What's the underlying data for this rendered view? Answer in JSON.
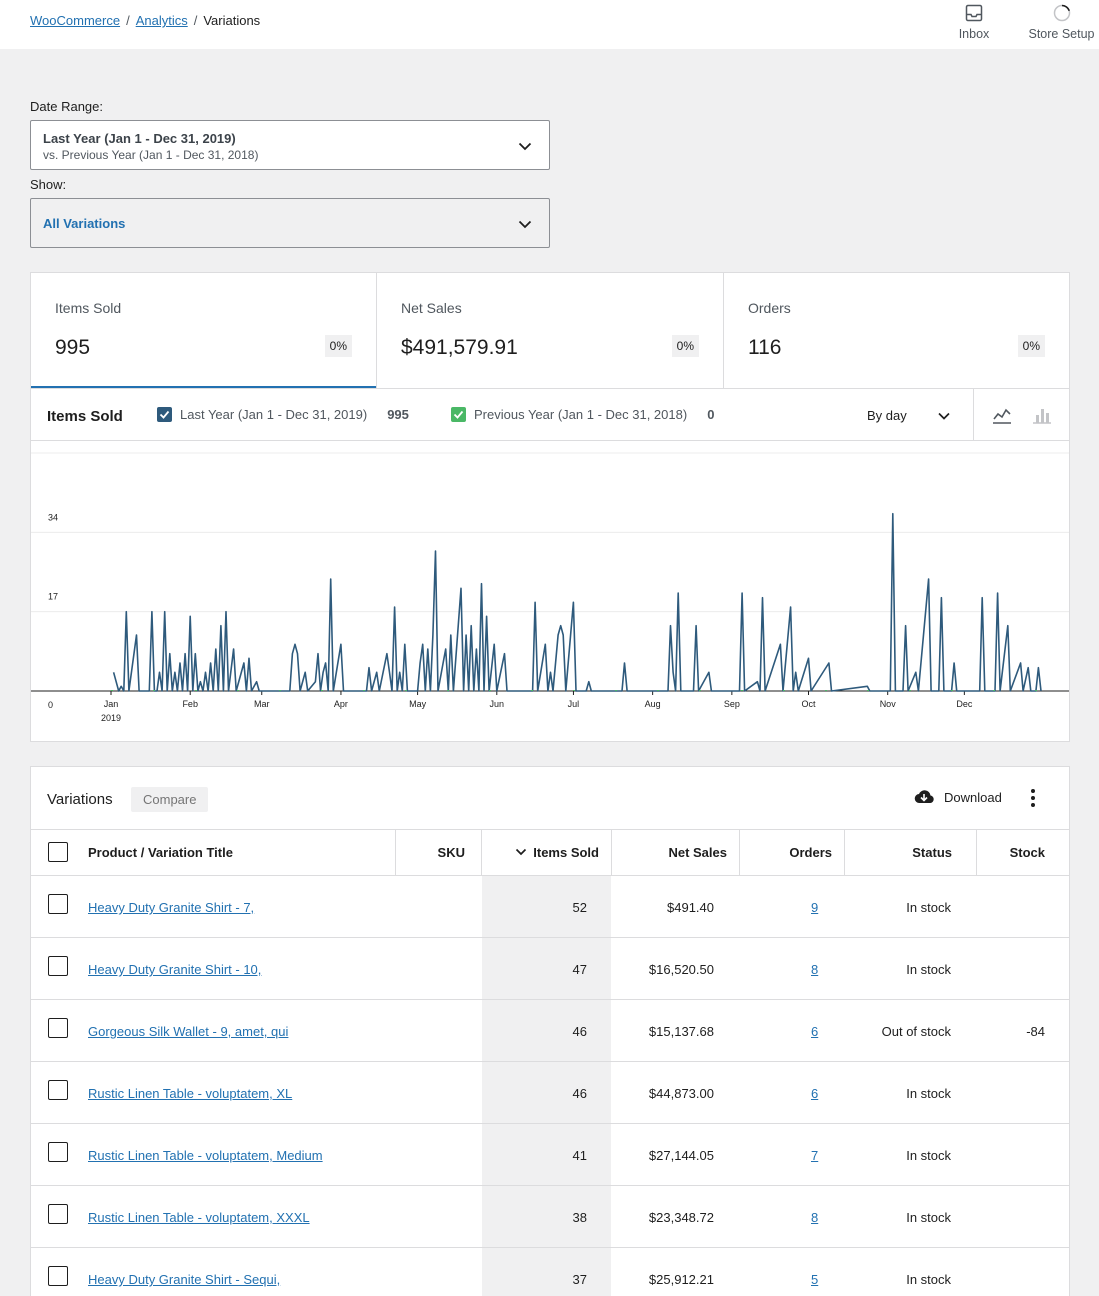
{
  "breadcrumb": {
    "root": "WooCommerce",
    "section": "Analytics",
    "current": "Variations"
  },
  "header_actions": [
    {
      "label": "Inbox",
      "icon": "inbox-icon"
    },
    {
      "label": "Store Setup",
      "icon": "progress-ring-icon"
    }
  ],
  "filters": {
    "date_range_label": "Date Range:",
    "date_range_primary": "Last Year (Jan 1 - Dec 31, 2019)",
    "date_range_compare": "vs. Previous Year (Jan 1 - Dec 31, 2018)",
    "show_label": "Show:",
    "show_value": "All Variations"
  },
  "summary": [
    {
      "title": "Items Sold",
      "value": "995",
      "delta": "0%"
    },
    {
      "title": "Net Sales",
      "value": "$491,579.91",
      "delta": "0%"
    },
    {
      "title": "Orders",
      "value": "116",
      "delta": "0%"
    }
  ],
  "chart_panel": {
    "title": "Items Sold",
    "legend": [
      {
        "label": "Last Year (Jan 1 - Dec 31, 2019)",
        "total": "995",
        "color": "#2e5a7c"
      },
      {
        "label": "Previous Year (Jan 1 - Dec 31, 2018)",
        "total": "0",
        "color": "#4ab866"
      }
    ],
    "interval": "By day",
    "icons": [
      "line-chart-icon",
      "bar-chart-icon"
    ]
  },
  "chart_data": {
    "type": "line",
    "title": "Items Sold",
    "ylim": [
      0,
      51
    ],
    "yticks": [
      "0",
      "17",
      "34",
      "51"
    ],
    "xticks": [
      "Jan",
      "Feb",
      "Mar",
      "Apr",
      "May",
      "Jun",
      "Jul",
      "Aug",
      "Sep",
      "Oct",
      "Nov",
      "Dec"
    ],
    "xtick_sub": "2019",
    "grid": true,
    "series": [
      {
        "name": "Last Year (Jan 1 - Dec 31, 2019)",
        "color": "#2e5a7c",
        "points": [
          [
            1,
            4
          ],
          [
            3,
            0
          ],
          [
            4,
            1
          ],
          [
            5,
            0
          ],
          [
            6,
            17
          ],
          [
            7,
            0
          ],
          [
            10,
            12
          ],
          [
            11,
            0
          ],
          [
            15,
            0
          ],
          [
            16,
            17
          ],
          [
            17,
            0
          ],
          [
            18,
            0
          ],
          [
            19,
            4
          ],
          [
            20,
            0
          ],
          [
            21,
            17
          ],
          [
            22,
            0
          ],
          [
            23,
            8
          ],
          [
            24,
            0
          ],
          [
            25,
            4
          ],
          [
            26,
            0
          ],
          [
            27,
            6
          ],
          [
            28,
            0
          ],
          [
            29,
            8
          ],
          [
            30,
            0
          ],
          [
            31,
            16
          ],
          [
            32,
            0
          ],
          [
            33,
            8
          ],
          [
            34,
            0
          ],
          [
            35,
            2
          ],
          [
            36,
            0
          ],
          [
            37,
            4
          ],
          [
            38,
            0
          ],
          [
            39,
            6
          ],
          [
            40,
            0
          ],
          [
            41,
            9
          ],
          [
            42,
            0
          ],
          [
            43,
            14
          ],
          [
            44,
            0
          ],
          [
            45,
            17
          ],
          [
            46,
            0
          ],
          [
            48,
            9
          ],
          [
            49,
            0
          ],
          [
            52,
            6
          ],
          [
            53,
            0
          ],
          [
            54,
            7
          ],
          [
            55,
            0
          ],
          [
            57,
            2
          ],
          [
            58,
            0
          ],
          [
            70,
            0
          ],
          [
            71,
            8
          ],
          [
            72,
            10
          ],
          [
            73,
            8
          ],
          [
            74,
            0
          ],
          [
            76,
            4
          ],
          [
            77,
            0
          ],
          [
            80,
            2
          ],
          [
            81,
            8
          ],
          [
            82,
            0
          ],
          [
            83,
            4
          ],
          [
            84,
            6
          ],
          [
            85,
            0
          ],
          [
            86,
            24
          ],
          [
            87,
            0
          ],
          [
            90,
            10
          ],
          [
            91,
            0
          ],
          [
            100,
            0
          ],
          [
            101,
            5
          ],
          [
            102,
            0
          ],
          [
            104,
            4
          ],
          [
            105,
            0
          ],
          [
            108,
            8
          ],
          [
            109,
            4
          ],
          [
            110,
            0
          ],
          [
            111,
            18
          ],
          [
            112,
            0
          ],
          [
            113,
            4
          ],
          [
            114,
            0
          ],
          [
            115,
            10
          ],
          [
            116,
            0
          ],
          [
            120,
            0
          ],
          [
            121,
            6
          ],
          [
            122,
            10
          ],
          [
            123,
            0
          ],
          [
            124,
            9
          ],
          [
            125,
            0
          ],
          [
            126,
            12
          ],
          [
            127,
            30
          ],
          [
            128,
            0
          ],
          [
            130,
            6
          ],
          [
            131,
            9
          ],
          [
            132,
            0
          ],
          [
            133,
            12
          ],
          [
            134,
            0
          ],
          [
            137,
            22
          ],
          [
            138,
            0
          ],
          [
            139,
            12
          ],
          [
            140,
            0
          ],
          [
            141,
            14
          ],
          [
            142,
            0
          ],
          [
            143,
            9
          ],
          [
            144,
            0
          ],
          [
            145,
            23
          ],
          [
            146,
            0
          ],
          [
            147,
            16
          ],
          [
            148,
            0
          ],
          [
            150,
            10
          ],
          [
            151,
            0
          ],
          [
            154,
            8
          ],
          [
            155,
            0
          ],
          [
            165,
            0
          ],
          [
            166,
            19
          ],
          [
            167,
            0
          ],
          [
            170,
            10
          ],
          [
            171,
            0
          ],
          [
            172,
            4
          ],
          [
            173,
            0
          ],
          [
            175,
            12
          ],
          [
            176,
            14
          ],
          [
            177,
            12
          ],
          [
            178,
            0
          ],
          [
            181,
            19
          ],
          [
            182,
            0
          ],
          [
            186,
            0
          ],
          [
            187,
            2
          ],
          [
            188,
            0
          ],
          [
            200,
            0
          ],
          [
            201,
            6
          ],
          [
            202,
            0
          ],
          [
            218,
            0
          ],
          [
            219,
            14
          ],
          [
            220,
            4
          ],
          [
            221,
            0
          ],
          [
            222,
            21
          ],
          [
            223,
            0
          ],
          [
            228,
            0
          ],
          [
            229,
            14
          ],
          [
            230,
            0
          ],
          [
            234,
            4
          ],
          [
            235,
            0
          ],
          [
            246,
            0
          ],
          [
            247,
            21
          ],
          [
            248,
            0
          ],
          [
            253,
            2
          ],
          [
            254,
            0
          ],
          [
            255,
            20
          ],
          [
            256,
            0
          ],
          [
            262,
            10
          ],
          [
            263,
            0
          ],
          [
            266,
            18
          ],
          [
            267,
            0
          ],
          [
            268,
            4
          ],
          [
            269,
            0
          ],
          [
            273,
            7
          ],
          [
            274,
            0
          ],
          [
            281,
            6
          ],
          [
            282,
            0
          ],
          [
            296,
            1
          ],
          [
            297,
            0
          ],
          [
            305,
            0
          ],
          [
            306,
            38
          ],
          [
            307,
            0
          ],
          [
            310,
            0
          ],
          [
            311,
            14
          ],
          [
            312,
            0
          ],
          [
            315,
            4
          ],
          [
            316,
            0
          ],
          [
            320,
            24
          ],
          [
            321,
            0
          ],
          [
            324,
            0
          ],
          [
            325,
            20
          ],
          [
            326,
            0
          ],
          [
            329,
            0
          ],
          [
            330,
            6
          ],
          [
            331,
            0
          ],
          [
            340,
            0
          ],
          [
            341,
            20
          ],
          [
            342,
            0
          ],
          [
            346,
            0
          ],
          [
            347,
            21
          ],
          [
            348,
            0
          ],
          [
            351,
            14
          ],
          [
            352,
            0
          ],
          [
            356,
            6
          ],
          [
            357,
            0
          ],
          [
            359,
            5
          ],
          [
            360,
            0
          ],
          [
            362,
            0
          ],
          [
            363,
            5
          ],
          [
            364,
            0
          ]
        ]
      },
      {
        "name": "Previous Year (Jan 1 - Dec 31, 2018)",
        "color": "#4ab866",
        "points": []
      }
    ]
  },
  "table": {
    "title": "Variations",
    "compare_label": "Compare",
    "download_label": "Download",
    "columns": {
      "product": "Product / Variation Title",
      "sku": "SKU",
      "items_sold": "Items Sold",
      "net_sales": "Net Sales",
      "orders": "Orders",
      "status": "Status",
      "stock": "Stock"
    },
    "rows": [
      {
        "product": "Heavy Duty Granite Shirt - 7,",
        "sku": "",
        "items_sold": "52",
        "net_sales": "$491.40",
        "orders": "9",
        "status": "In stock",
        "stock": ""
      },
      {
        "product": "Heavy Duty Granite Shirt - 10,",
        "sku": "",
        "items_sold": "47",
        "net_sales": "$16,520.50",
        "orders": "8",
        "status": "In stock",
        "stock": ""
      },
      {
        "product": "Gorgeous Silk Wallet - 9, amet, qui",
        "sku": "",
        "items_sold": "46",
        "net_sales": "$15,137.68",
        "orders": "6",
        "status": "Out of stock",
        "stock": "-84"
      },
      {
        "product": "Rustic Linen Table - voluptatem, XL",
        "sku": "",
        "items_sold": "46",
        "net_sales": "$44,873.00",
        "orders": "6",
        "status": "In stock",
        "stock": ""
      },
      {
        "product": "Rustic Linen Table - voluptatem, Medium",
        "sku": "",
        "items_sold": "41",
        "net_sales": "$27,144.05",
        "orders": "7",
        "status": "In stock",
        "stock": ""
      },
      {
        "product": "Rustic Linen Table - voluptatem, XXXL",
        "sku": "",
        "items_sold": "38",
        "net_sales": "$23,348.72",
        "orders": "8",
        "status": "In stock",
        "stock": ""
      },
      {
        "product": "Heavy Duty Granite Shirt - Sequi,",
        "sku": "",
        "items_sold": "37",
        "net_sales": "$25,912.21",
        "orders": "5",
        "status": "In stock",
        "stock": ""
      }
    ]
  }
}
